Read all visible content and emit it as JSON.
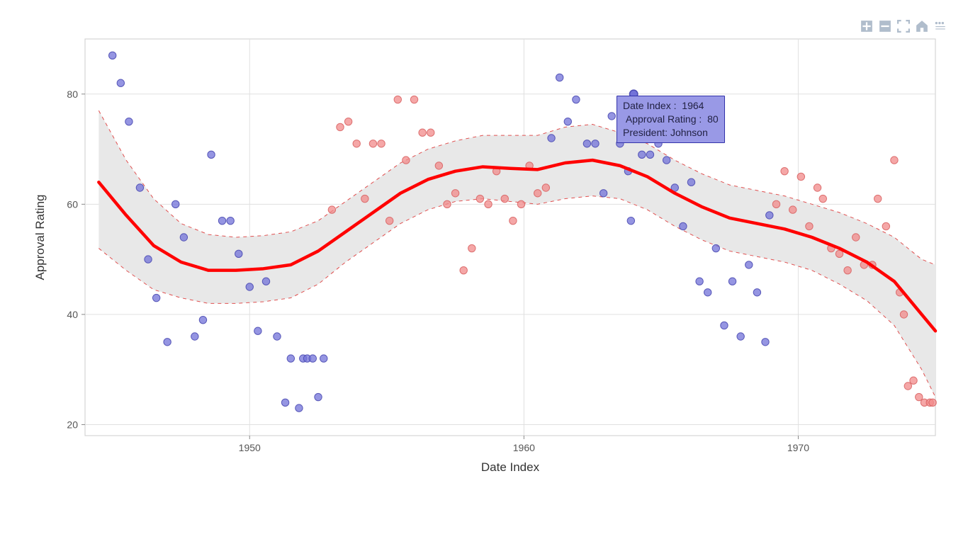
{
  "chart": {
    "type": "scatter+smooth",
    "xlabel": "Date Index",
    "ylabel": "Approval Rating",
    "label_fontsize": 17,
    "tick_fontsize": 14,
    "background_color": "#ffffff",
    "plot_border_color": "#cccccc",
    "grid_color": "#e0e0e0",
    "xlim": [
      1944,
      1975
    ],
    "ylim": [
      18,
      90
    ],
    "xticks": [
      1950,
      1960,
      1970
    ],
    "yticks": [
      20,
      40,
      60,
      80
    ],
    "blue_points": {
      "color": "#7171d8",
      "stroke": "#4b4bb3",
      "opacity": 0.75,
      "radius": 5.2,
      "data": [
        [
          1945.0,
          87
        ],
        [
          1945.3,
          82
        ],
        [
          1945.6,
          75
        ],
        [
          1946.0,
          63
        ],
        [
          1946.3,
          50
        ],
        [
          1946.6,
          43
        ],
        [
          1947.0,
          35
        ],
        [
          1947.3,
          60
        ],
        [
          1947.6,
          54
        ],
        [
          1948.0,
          36
        ],
        [
          1948.3,
          39
        ],
        [
          1948.6,
          69
        ],
        [
          1949.0,
          57
        ],
        [
          1949.3,
          57
        ],
        [
          1949.6,
          51
        ],
        [
          1950.0,
          45
        ],
        [
          1950.3,
          37
        ],
        [
          1950.6,
          46
        ],
        [
          1951.0,
          36
        ],
        [
          1951.3,
          24
        ],
        [
          1951.5,
          32
        ],
        [
          1951.8,
          23
        ],
        [
          1951.95,
          32
        ],
        [
          1952.1,
          32
        ],
        [
          1952.3,
          32
        ],
        [
          1952.5,
          25
        ],
        [
          1952.7,
          32
        ],
        [
          1961.0,
          72
        ],
        [
          1961.3,
          83
        ],
        [
          1961.6,
          75
        ],
        [
          1961.9,
          79
        ],
        [
          1962.3,
          71
        ],
        [
          1962.6,
          71
        ],
        [
          1962.9,
          62
        ],
        [
          1963.2,
          76
        ],
        [
          1963.5,
          71
        ],
        [
          1963.8,
          66
        ],
        [
          1963.9,
          57
        ],
        [
          1964.0,
          80
        ],
        [
          1964.3,
          69
        ],
        [
          1964.6,
          69
        ],
        [
          1964.9,
          71
        ],
        [
          1965.2,
          68
        ],
        [
          1965.5,
          63
        ],
        [
          1965.8,
          56
        ],
        [
          1966.1,
          64
        ],
        [
          1966.4,
          46
        ],
        [
          1966.7,
          44
        ],
        [
          1967.0,
          52
        ],
        [
          1967.3,
          38
        ],
        [
          1967.6,
          46
        ],
        [
          1967.9,
          36
        ],
        [
          1968.2,
          49
        ],
        [
          1968.5,
          44
        ],
        [
          1968.8,
          35
        ],
        [
          1968.95,
          58
        ]
      ]
    },
    "red_points": {
      "color": "#f28a8a",
      "stroke": "#d96565",
      "opacity": 0.75,
      "radius": 5.2,
      "data": [
        [
          1953.0,
          59
        ],
        [
          1953.3,
          74
        ],
        [
          1953.6,
          75
        ],
        [
          1953.9,
          71
        ],
        [
          1954.2,
          61
        ],
        [
          1954.5,
          71
        ],
        [
          1954.8,
          71
        ],
        [
          1955.1,
          57
        ],
        [
          1955.4,
          79
        ],
        [
          1955.7,
          68
        ],
        [
          1956.0,
          79
        ],
        [
          1956.3,
          73
        ],
        [
          1956.6,
          73
        ],
        [
          1956.9,
          67
        ],
        [
          1957.2,
          60
        ],
        [
          1957.5,
          62
        ],
        [
          1957.8,
          48
        ],
        [
          1958.1,
          52
        ],
        [
          1958.4,
          61
        ],
        [
          1958.7,
          60
        ],
        [
          1959.0,
          66
        ],
        [
          1959.3,
          61
        ],
        [
          1959.6,
          57
        ],
        [
          1959.9,
          60
        ],
        [
          1960.2,
          67
        ],
        [
          1960.5,
          62
        ],
        [
          1960.8,
          63
        ],
        [
          1969.2,
          60
        ],
        [
          1969.5,
          66
        ],
        [
          1969.8,
          59
        ],
        [
          1970.1,
          65
        ],
        [
          1970.4,
          56
        ],
        [
          1970.7,
          63
        ],
        [
          1970.9,
          61
        ],
        [
          1971.2,
          52
        ],
        [
          1971.5,
          51
        ],
        [
          1971.8,
          48
        ],
        [
          1972.1,
          54
        ],
        [
          1972.4,
          49
        ],
        [
          1972.7,
          49
        ],
        [
          1972.9,
          61
        ],
        [
          1973.2,
          56
        ],
        [
          1973.5,
          68
        ],
        [
          1973.7,
          44
        ],
        [
          1973.85,
          40
        ],
        [
          1974.0,
          27
        ],
        [
          1974.2,
          28
        ],
        [
          1974.4,
          25
        ],
        [
          1974.6,
          24
        ],
        [
          1974.8,
          24
        ],
        [
          1974.9,
          24
        ]
      ]
    },
    "smooth_line": {
      "color": "#ff0000",
      "width": 4.5,
      "data": [
        [
          1944.5,
          64
        ],
        [
          1945.5,
          58
        ],
        [
          1946.5,
          52.5
        ],
        [
          1947.5,
          49.5
        ],
        [
          1948.5,
          48
        ],
        [
          1949.5,
          48
        ],
        [
          1950.5,
          48.3
        ],
        [
          1951.5,
          49
        ],
        [
          1952.5,
          51.5
        ],
        [
          1953.5,
          55
        ],
        [
          1954.5,
          58.5
        ],
        [
          1955.5,
          62
        ],
        [
          1956.5,
          64.5
        ],
        [
          1957.5,
          66
        ],
        [
          1958.5,
          66.8
        ],
        [
          1959.5,
          66.5
        ],
        [
          1960.5,
          66.3
        ],
        [
          1961.5,
          67.5
        ],
        [
          1962.5,
          68
        ],
        [
          1963.5,
          67
        ],
        [
          1964.5,
          65
        ],
        [
          1965.5,
          62
        ],
        [
          1966.5,
          59.5
        ],
        [
          1967.5,
          57.5
        ],
        [
          1968.5,
          56.5
        ],
        [
          1969.5,
          55.5
        ],
        [
          1970.5,
          54
        ],
        [
          1971.5,
          52
        ],
        [
          1972.5,
          49.5
        ],
        [
          1973.5,
          46
        ],
        [
          1974.5,
          40
        ],
        [
          1975.0,
          37
        ]
      ]
    },
    "confidence_band": {
      "fill": "#e8e8e8",
      "dash_color": "#e05050",
      "dash_pattern": "5,5",
      "upper": [
        [
          1944.5,
          77
        ],
        [
          1945.5,
          68
        ],
        [
          1946.5,
          61
        ],
        [
          1947.5,
          56.5
        ],
        [
          1948.5,
          54.5
        ],
        [
          1949.5,
          54
        ],
        [
          1950.5,
          54.3
        ],
        [
          1951.5,
          55
        ],
        [
          1952.5,
          57
        ],
        [
          1953.5,
          60.5
        ],
        [
          1954.5,
          64
        ],
        [
          1955.5,
          67.5
        ],
        [
          1956.5,
          70
        ],
        [
          1957.5,
          71.5
        ],
        [
          1958.5,
          72.5
        ],
        [
          1959.5,
          72.5
        ],
        [
          1960.5,
          72.5
        ],
        [
          1961.5,
          74
        ],
        [
          1962.5,
          74.5
        ],
        [
          1963.5,
          73
        ],
        [
          1964.5,
          71
        ],
        [
          1965.5,
          68
        ],
        [
          1966.5,
          65.5
        ],
        [
          1967.5,
          63.5
        ],
        [
          1968.5,
          62.5
        ],
        [
          1969.5,
          61.5
        ],
        [
          1970.5,
          60
        ],
        [
          1971.5,
          58.5
        ],
        [
          1972.5,
          56.5
        ],
        [
          1973.5,
          54
        ],
        [
          1974.5,
          50
        ],
        [
          1975.0,
          49
        ]
      ],
      "lower": [
        [
          1944.5,
          52
        ],
        [
          1945.5,
          48
        ],
        [
          1946.5,
          44.5
        ],
        [
          1947.5,
          43
        ],
        [
          1948.5,
          42
        ],
        [
          1949.5,
          42
        ],
        [
          1950.5,
          42.3
        ],
        [
          1951.5,
          43
        ],
        [
          1952.5,
          45.5
        ],
        [
          1953.5,
          49.5
        ],
        [
          1954.5,
          53
        ],
        [
          1955.5,
          56.5
        ],
        [
          1956.5,
          59
        ],
        [
          1957.5,
          60.5
        ],
        [
          1958.5,
          61
        ],
        [
          1959.5,
          60.5
        ],
        [
          1960.5,
          60
        ],
        [
          1961.5,
          61
        ],
        [
          1962.5,
          61.5
        ],
        [
          1963.5,
          61
        ],
        [
          1964.5,
          59
        ],
        [
          1965.5,
          56
        ],
        [
          1966.5,
          53.5
        ],
        [
          1967.5,
          51.5
        ],
        [
          1968.5,
          50.5
        ],
        [
          1969.5,
          49.5
        ],
        [
          1970.5,
          48
        ],
        [
          1971.5,
          45.5
        ],
        [
          1972.5,
          42.5
        ],
        [
          1973.5,
          38
        ],
        [
          1974.5,
          30
        ],
        [
          1975.0,
          25
        ]
      ]
    }
  },
  "tooltip": {
    "x_label": "Date Index :",
    "x_value": "1964",
    "y_label": "Approval Rating :",
    "y_value": "80",
    "extra_label": "President:",
    "extra_value": "Johnson",
    "bg_color": "#9999e6",
    "border_color": "#3333aa",
    "text_color": "#222244",
    "position_x": 870,
    "position_y": 135,
    "point_x": 1964.0,
    "point_y": 80
  },
  "toolbar": {
    "zoom_in": "zoom-in",
    "zoom_out": "zoom-out",
    "fullscreen": "fullscreen",
    "home": "home",
    "hover": "hover-tool",
    "color": "#b0bdcc"
  }
}
